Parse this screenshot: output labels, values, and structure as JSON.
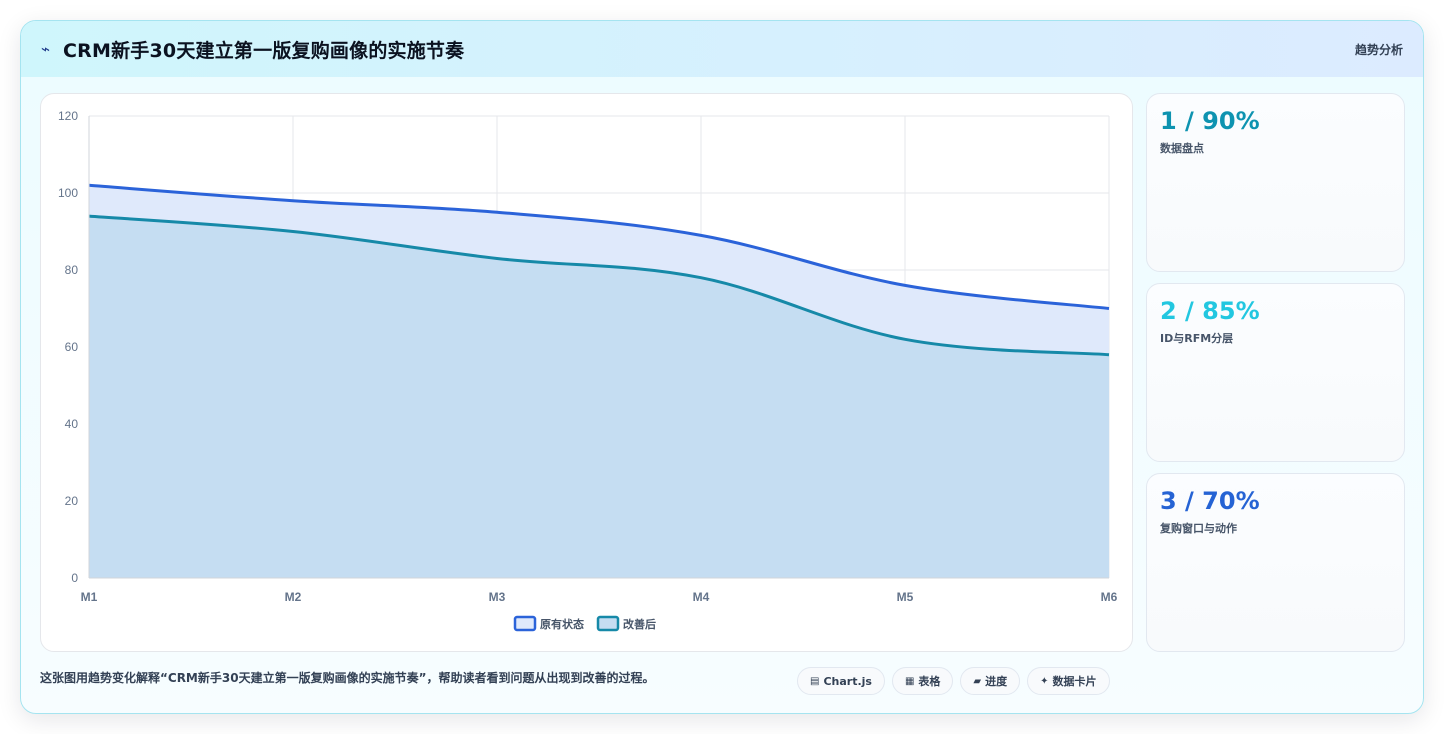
{
  "header": {
    "title_icon": "⌁",
    "title": "CRM新手30天建立第一版复购画像的实施节奏",
    "tag": "趋势分析"
  },
  "chart_data": {
    "type": "area",
    "categories": [
      "M1",
      "M2",
      "M3",
      "M4",
      "M5",
      "M6"
    ],
    "ylim": [
      0,
      120
    ],
    "yticks": [
      0,
      20,
      40,
      60,
      80,
      100,
      120
    ],
    "grid": true,
    "legend_position": "bottom",
    "series": [
      {
        "name": "原有状态",
        "values": [
          102,
          98,
          95,
          89,
          76,
          70
        ],
        "color": "#2b63d9",
        "fill": "#dfe9fb"
      },
      {
        "name": "改善后",
        "values": [
          94,
          90,
          83,
          78,
          62,
          58
        ],
        "color": "#1689a8",
        "fill": "#c5ddf2"
      }
    ]
  },
  "stats": [
    {
      "value": "1 / 90%",
      "label": "数据盘点",
      "color": "#0e93b0"
    },
    {
      "value": "2 / 85%",
      "label": "ID与RFM分层",
      "color": "#22c7e0"
    },
    {
      "value": "3 / 70%",
      "label": "复购窗口与动作",
      "color": "#2563d4"
    }
  ],
  "caption": "这张图用趋势变化解释“CRM新手30天建立第一版复购画像的实施节奏”，帮助读者看到问题从出现到改善的过程。",
  "pills": [
    {
      "icon": "▤",
      "label": "Chart.js"
    },
    {
      "icon": "▦",
      "label": "表格"
    },
    {
      "icon": "▰",
      "label": "进度"
    },
    {
      "icon": "✦",
      "label": "数据卡片"
    }
  ]
}
